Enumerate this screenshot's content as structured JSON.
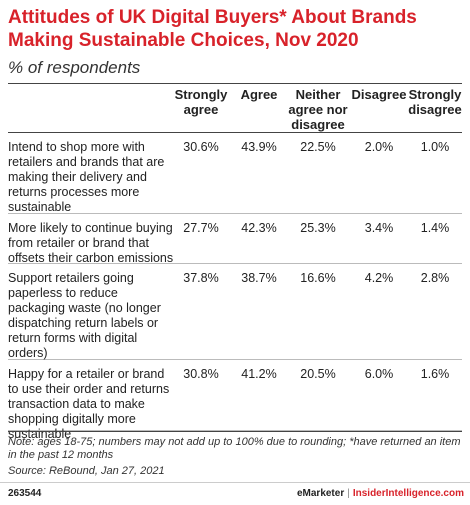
{
  "chart_data": {
    "type": "table",
    "title": "Attitudes of UK Digital Buyers* About Brands Making Sustainable Choices, Nov 2020",
    "subtitle": "% of respondents",
    "columns": [
      "Strongly agree",
      "Agree",
      "Neither agree nor disagree",
      "Disagree",
      "Strongly disagree"
    ],
    "rows": [
      {
        "label": "Intend to shop more with retailers and brands that are making their delivery and returns processes more sustainable",
        "values": [
          "30.6%",
          "43.9%",
          "22.5%",
          "2.0%",
          "1.0%"
        ]
      },
      {
        "label": "More likely to continue buying from retailer or brand that offsets their carbon emissions",
        "values": [
          "27.7%",
          "42.3%",
          "25.3%",
          "3.4%",
          "1.4%"
        ]
      },
      {
        "label": "Support retailers going paperless to reduce packaging waste (no longer dispatching return labels or return forms with digital orders)",
        "values": [
          "37.8%",
          "38.7%",
          "16.6%",
          "4.2%",
          "2.8%"
        ]
      },
      {
        "label": "Happy for a retailer or brand to use their order and returns transaction data to make shopping digitally more sustainable",
        "values": [
          "30.8%",
          "41.2%",
          "20.5%",
          "6.0%",
          "1.6%"
        ]
      }
    ],
    "note": "Note: ages 18-75; numbers may not add up to 100% due to rounding; *have returned an item in the past 12 months",
    "source": "Source: ReBound, Jan 27, 2021"
  },
  "footer": {
    "chart_id": "263544",
    "brand_left": "eMarketer",
    "brand_sep": "|",
    "brand_right": "InsiderIntelligence.com"
  },
  "colors": {
    "title": "#d8222a",
    "text": "#222222",
    "rule": "#444444"
  }
}
